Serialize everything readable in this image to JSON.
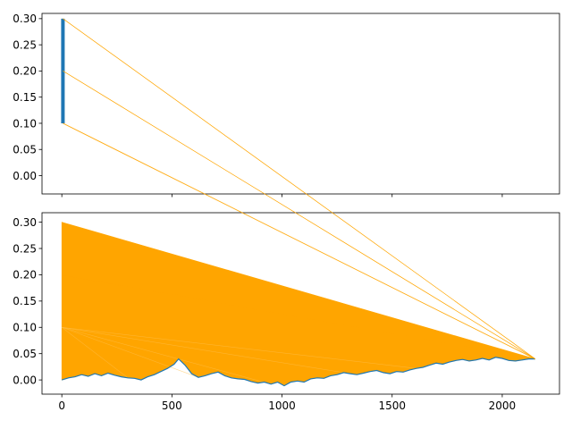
{
  "chart_data": [
    {
      "type": "line",
      "panel": "top",
      "title": "",
      "xlabel": "",
      "ylabel": "",
      "xlim": [
        -90,
        2260
      ],
      "ylim": [
        -0.035,
        0.31
      ],
      "yticks": [
        0.0,
        0.05,
        0.1,
        0.15,
        0.2,
        0.25,
        0.3
      ],
      "ytick_labels": [
        "0.00",
        "0.05",
        "0.10",
        "0.15",
        "0.20",
        "0.25",
        "0.30"
      ],
      "xticks": [
        0,
        500,
        1000,
        1500,
        2000
      ],
      "xtick_labels_visible": false,
      "series": [
        {
          "role": "thick-vertical-segment",
          "color": "#1f77b4",
          "x": [
            5,
            5
          ],
          "y": [
            0.1,
            0.3
          ]
        },
        {
          "role": "connection-lines",
          "color": "#FFA500",
          "lines": [
            {
              "x": [
                5,
                2150
              ],
              "y": [
                0.3,
                0.04
              ]
            },
            {
              "x": [
                5,
                2150
              ],
              "y": [
                0.3,
                0.04
              ]
            },
            {
              "x": [
                5,
                2150
              ],
              "y": [
                0.2,
                0.04
              ]
            },
            {
              "x": [
                5,
                2150
              ],
              "y": [
                0.2,
                0.04
              ]
            },
            {
              "x": [
                5,
                2150
              ],
              "y": [
                0.1,
                0.04
              ]
            }
          ]
        }
      ]
    },
    {
      "type": "line",
      "panel": "bottom",
      "title": "",
      "xlabel": "",
      "ylabel": "",
      "xlim": [
        -90,
        2260
      ],
      "ylim": [
        -0.027,
        0.318
      ],
      "yticks": [
        0.0,
        0.05,
        0.1,
        0.15,
        0.2,
        0.25,
        0.3
      ],
      "ytick_labels": [
        "0.00",
        "0.05",
        "0.10",
        "0.15",
        "0.20",
        "0.25",
        "0.30"
      ],
      "xticks": [
        0,
        500,
        1000,
        1500,
        2000
      ],
      "xtick_labels": [
        "0",
        "500",
        "1000",
        "1500",
        "2000"
      ],
      "series": [
        {
          "role": "random-walk",
          "color": "#1f77b4",
          "x": [
            0,
            30,
            60,
            90,
            120,
            150,
            180,
            210,
            240,
            270,
            300,
            330,
            360,
            390,
            420,
            450,
            480,
            510,
            530,
            560,
            590,
            620,
            650,
            680,
            710,
            740,
            770,
            800,
            830,
            860,
            890,
            920,
            950,
            980,
            1010,
            1040,
            1070,
            1100,
            1130,
            1160,
            1190,
            1220,
            1250,
            1280,
            1310,
            1340,
            1370,
            1400,
            1430,
            1460,
            1490,
            1520,
            1550,
            1580,
            1610,
            1640,
            1670,
            1700,
            1730,
            1760,
            1790,
            1820,
            1850,
            1880,
            1910,
            1940,
            1970,
            2000,
            2030,
            2060,
            2090,
            2120,
            2150
          ],
          "y": [
            0.0,
            0.004,
            0.006,
            0.01,
            0.007,
            0.012,
            0.008,
            0.013,
            0.009,
            0.006,
            0.004,
            0.003,
            0.0,
            0.006,
            0.01,
            0.016,
            0.022,
            0.03,
            0.04,
            0.028,
            0.012,
            0.005,
            0.008,
            0.012,
            0.015,
            0.008,
            0.004,
            0.002,
            0.001,
            -0.003,
            -0.006,
            -0.004,
            -0.008,
            -0.004,
            -0.011,
            -0.004,
            -0.002,
            -0.004,
            0.002,
            0.004,
            0.003,
            0.008,
            0.01,
            0.014,
            0.012,
            0.01,
            0.013,
            0.016,
            0.018,
            0.014,
            0.012,
            0.016,
            0.015,
            0.019,
            0.022,
            0.024,
            0.028,
            0.032,
            0.03,
            0.034,
            0.037,
            0.039,
            0.036,
            0.038,
            0.041,
            0.038,
            0.043,
            0.041,
            0.037,
            0.036,
            0.038,
            0.04,
            0.04
          ]
        },
        {
          "role": "connection-fan",
          "color": "#FFA500",
          "apex": [
            0,
            0.3
          ],
          "apex_secondary": [
            0,
            0.2
          ],
          "apex_tertiary": [
            0,
            0.1
          ],
          "end": [
            2150,
            0.04
          ]
        }
      ]
    }
  ]
}
